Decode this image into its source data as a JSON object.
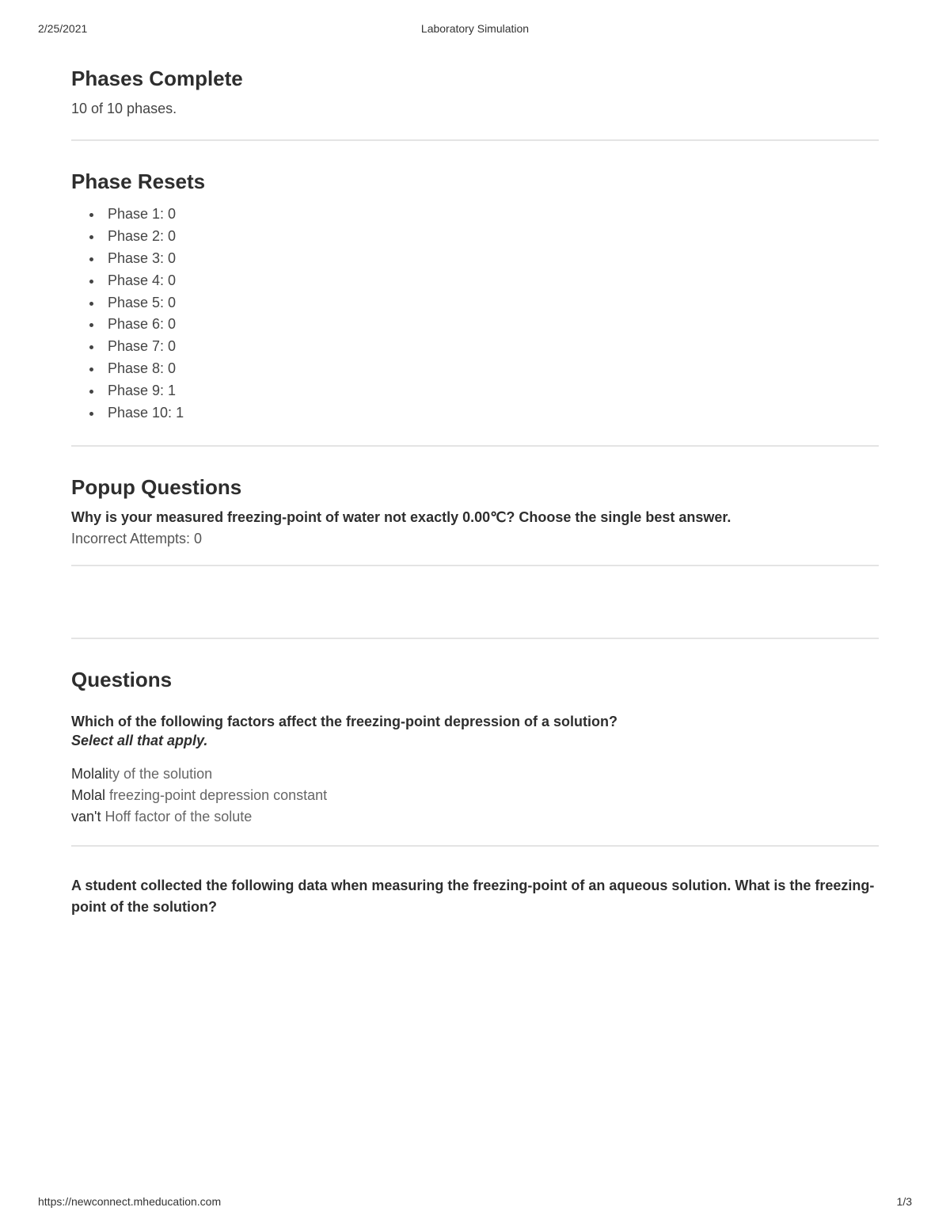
{
  "header": {
    "date": "2/25/2021",
    "title": "Laboratory Simulation"
  },
  "phases_complete": {
    "heading": "Phases Complete",
    "subtitle": "10 of 10 phases."
  },
  "phase_resets": {
    "heading": "Phase Resets",
    "items": [
      "Phase 1: 0",
      "Phase 2: 0",
      "Phase 3: 0",
      "Phase 4: 0",
      "Phase 5: 0",
      "Phase 6: 0",
      "Phase 7: 0",
      "Phase 8: 0",
      "Phase 9: 1",
      "Phase 10: 1"
    ]
  },
  "popup": {
    "heading": "Popup Questions",
    "question": "Why is your measured freezing-point of water not exactly 0.00℃? Choose the single best answer.",
    "attempts": "Incorrect Attempts: 0"
  },
  "questions": {
    "heading": "Questions",
    "q1": {
      "text": "Which of the following factors affect the freezing-point depression of a solution?",
      "sub": "Select all that apply.",
      "answers": [
        {
          "bold": "Molali",
          "rest": "ty of the solution"
        },
        {
          "bold": "Molal",
          "rest": " freezing-point depression constant"
        },
        {
          "bold": "van't",
          "rest": " Hoff factor of the solute"
        }
      ]
    },
    "q2": {
      "text": "A student collected the following data when measuring the freezing-point of an aqueous solution. What is the freezing-point of the solution?"
    }
  },
  "footer": {
    "url": "https://newconnect.mheducation.com",
    "page": "1/3"
  },
  "colors": {
    "text": "#333333",
    "heading": "#2e2e2e",
    "muted": "#666666",
    "divider": "#e4e4e4",
    "background": "#ffffff"
  }
}
